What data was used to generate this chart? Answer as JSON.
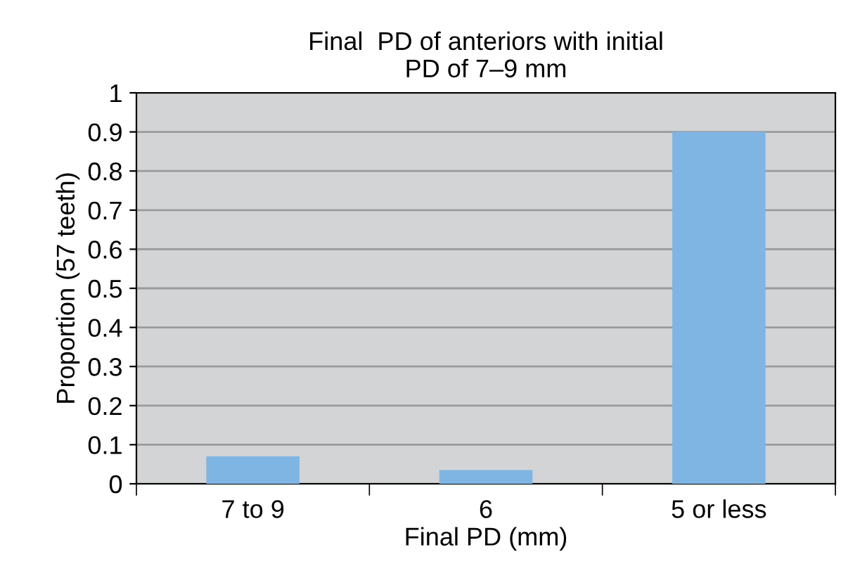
{
  "chart_data": {
    "type": "bar",
    "title": "Final  PD of anteriors with initial\nPD of 7–9 mm",
    "xlabel": "Final PD (mm)",
    "ylabel": "Proportion (57 teeth)",
    "categories": [
      "7 to 9",
      "6",
      "5 or less"
    ],
    "values": [
      0.07,
      0.035,
      0.9
    ],
    "color": "#7fb5e3",
    "ylim": [
      0,
      1
    ],
    "yticks": [
      0,
      0.1,
      0.2,
      0.3,
      0.4,
      0.5,
      0.6,
      0.7,
      0.8,
      0.9,
      1
    ],
    "grid": "y"
  }
}
